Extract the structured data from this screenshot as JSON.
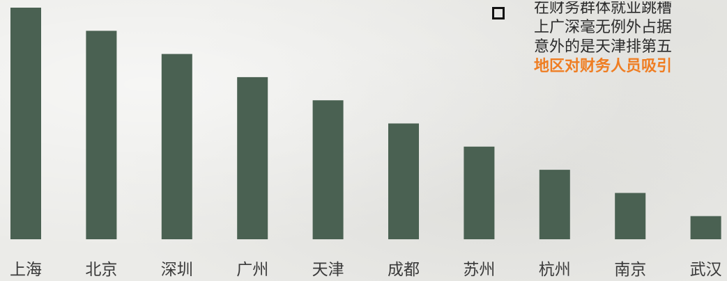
{
  "chart_data": {
    "type": "bar",
    "categories": [
      "上海",
      "北京",
      "深圳",
      "广州",
      "天津",
      "成都",
      "苏州",
      "杭州",
      "南京",
      "武汉"
    ],
    "values": [
      100,
      90,
      80,
      70,
      60,
      50,
      40,
      30,
      20,
      10
    ],
    "ylim": [
      0,
      100
    ],
    "bar_color": "#4a6152"
  },
  "note": {
    "bullet_icon": "hollow-square-bullet",
    "lines": [
      "在财务群体就业跳槽",
      "上广深毫无例外占据",
      "意外的是天津排第五"
    ],
    "highlight": "地区对财务人员吸引",
    "highlight_color": "#ef7d22"
  }
}
